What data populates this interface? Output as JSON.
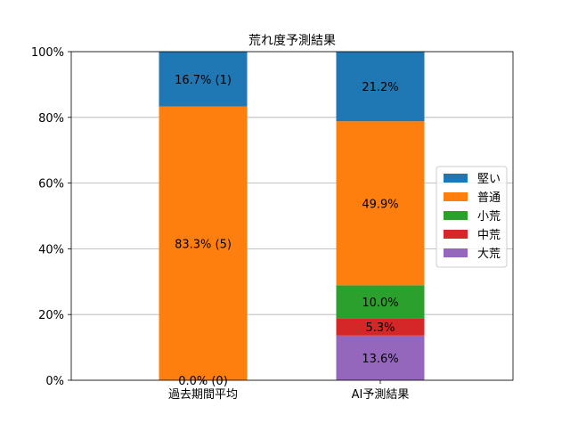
{
  "chart_data": {
    "type": "bar",
    "stacked": true,
    "title": "荒れ度予測結果",
    "xlabel": "",
    "ylabel": "",
    "ylim": [
      0,
      100
    ],
    "ytick_values": [
      0,
      20,
      40,
      60,
      80,
      100
    ],
    "ytick_labels": [
      "0%",
      "20%",
      "40%",
      "60%",
      "80%",
      "100%"
    ],
    "grid": "horizontal",
    "legend_position": "right",
    "categories": [
      "過去期間平均",
      "AI予測結果"
    ],
    "series": [
      {
        "name": "大荒",
        "color": "#9467bd",
        "values": [
          0.0,
          13.6
        ],
        "labels": [
          "",
          "13.6%"
        ]
      },
      {
        "name": "中荒",
        "color": "#d62728",
        "values": [
          0.0,
          5.3
        ],
        "labels": [
          "",
          "5.3%"
        ]
      },
      {
        "name": "小荒",
        "color": "#2ca02c",
        "values": [
          0.0,
          10.0
        ],
        "labels": [
          "0.0% (0)",
          "10.0%"
        ]
      },
      {
        "name": "普通",
        "color": "#ff7f0e",
        "values": [
          83.3,
          49.9
        ],
        "labels": [
          "83.3% (5)",
          "49.9%"
        ]
      },
      {
        "name": "堅い",
        "color": "#1f77b4",
        "values": [
          16.7,
          21.2
        ],
        "labels": [
          "16.7% (1)",
          "21.2%"
        ]
      }
    ],
    "legend_order": [
      "堅い",
      "普通",
      "小荒",
      "中荒",
      "大荒"
    ]
  }
}
